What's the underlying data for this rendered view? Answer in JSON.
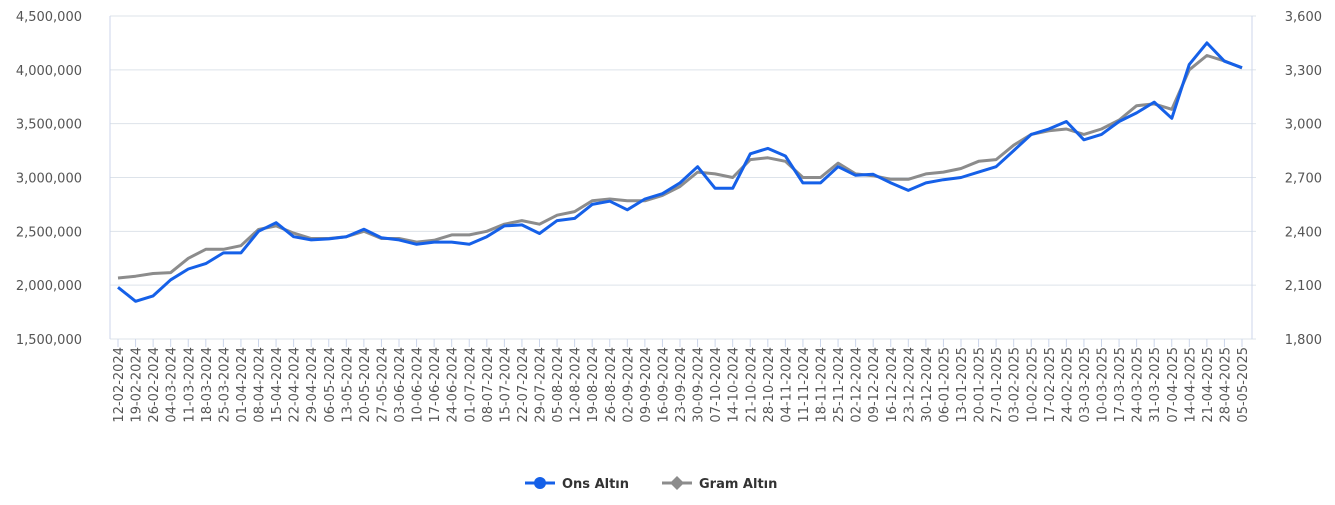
{
  "chart_data": {
    "type": "line",
    "categories": [
      "12-02-2024",
      "19-02-2024",
      "26-02-2024",
      "04-03-2024",
      "11-03-2024",
      "18-03-2024",
      "25-03-2024",
      "01-04-2024",
      "08-04-2024",
      "15-04-2024",
      "22-04-2024",
      "29-04-2024",
      "06-05-2024",
      "13-05-2024",
      "20-05-2024",
      "27-05-2024",
      "03-06-2024",
      "10-06-2024",
      "17-06-2024",
      "24-06-2024",
      "01-07-2024",
      "08-07-2024",
      "15-07-2024",
      "22-07-2024",
      "29-07-2024",
      "05-08-2024",
      "12-08-2024",
      "19-08-2024",
      "26-08-2024",
      "02-09-2024",
      "09-09-2024",
      "16-09-2024",
      "23-09-2024",
      "30-09-2024",
      "07-10-2024",
      "14-10-2024",
      "21-10-2024",
      "28-10-2024",
      "04-11-2024",
      "11-11-2024",
      "18-11-2024",
      "25-11-2024",
      "02-12-2024",
      "09-12-2024",
      "16-12-2024",
      "23-12-2024",
      "30-12-2024",
      "06-01-2025",
      "13-01-2025",
      "20-01-2025",
      "27-01-2025",
      "03-02-2025",
      "10-02-2025",
      "17-02-2025",
      "24-02-2025",
      "03-03-2025",
      "10-03-2025",
      "17-03-2025",
      "24-03-2025",
      "31-03-2025",
      "07-04-2025",
      "14-04-2025",
      "21-04-2025",
      "28-04-2025",
      "05-05-2025"
    ],
    "series": [
      {
        "name": "Ons Altın",
        "color": "#1560e8",
        "axis": "y",
        "values": [
          1980000,
          1850000,
          1900000,
          2050000,
          2150000,
          2200000,
          2300000,
          2300000,
          2500000,
          2580000,
          2450000,
          2420000,
          2430000,
          2450000,
          2520000,
          2440000,
          2420000,
          2380000,
          2400000,
          2400000,
          2380000,
          2450000,
          2550000,
          2560000,
          2480000,
          2600000,
          2620000,
          2750000,
          2780000,
          2700000,
          2800000,
          2850000,
          2950000,
          3100000,
          2900000,
          2900000,
          3220000,
          3270000,
          3200000,
          2950000,
          2950000,
          3100000,
          3020000,
          3030000,
          2950000,
          2880000,
          2950000,
          2980000,
          3000000,
          3050000,
          3100000,
          3250000,
          3400000,
          3450000,
          3520000,
          3350000,
          3400000,
          3520000,
          3600000,
          3700000,
          3550000,
          4050000,
          4250000,
          4080000,
          4020000
        ]
      },
      {
        "name": "Gram Altın",
        "color": "#8c8c8c",
        "axis": "y2",
        "values": [
          2140,
          2150,
          2165,
          2170,
          2250,
          2300,
          2300,
          2320,
          2410,
          2430,
          2390,
          2360,
          2360,
          2370,
          2400,
          2360,
          2360,
          2340,
          2350,
          2380,
          2380,
          2400,
          2440,
          2460,
          2440,
          2490,
          2510,
          2570,
          2580,
          2570,
          2570,
          2600,
          2650,
          2730,
          2720,
          2700,
          2800,
          2810,
          2790,
          2700,
          2700,
          2780,
          2720,
          2710,
          2690,
          2690,
          2720,
          2730,
          2750,
          2790,
          2800,
          2880,
          2940,
          2960,
          2970,
          2940,
          2970,
          3020,
          3100,
          3110,
          3080,
          3300,
          3380,
          3350,
          3310
        ]
      }
    ],
    "ylim": [
      1500000,
      4500000
    ],
    "yticks": [
      {
        "value": 1500000,
        "label": "1,500,000"
      },
      {
        "value": 2000000,
        "label": "2,000,000"
      },
      {
        "value": 2500000,
        "label": "2,500,000"
      },
      {
        "value": 3000000,
        "label": "3,000,000"
      },
      {
        "value": 3500000,
        "label": "3,500,000"
      },
      {
        "value": 4000000,
        "label": "4,000,000"
      },
      {
        "value": 4500000,
        "label": "4,500,000"
      }
    ],
    "y2lim": [
      1800,
      3600
    ],
    "y2ticks": [
      {
        "value": 1800,
        "label": "1,800"
      },
      {
        "value": 2100,
        "label": "2,100"
      },
      {
        "value": 2400,
        "label": "2,400"
      },
      {
        "value": 2700,
        "label": "2,700"
      },
      {
        "value": 3000,
        "label": "3,000"
      },
      {
        "value": 3300,
        "label": "3,300"
      },
      {
        "value": 3600,
        "label": "3,600"
      }
    ],
    "grid": true
  }
}
